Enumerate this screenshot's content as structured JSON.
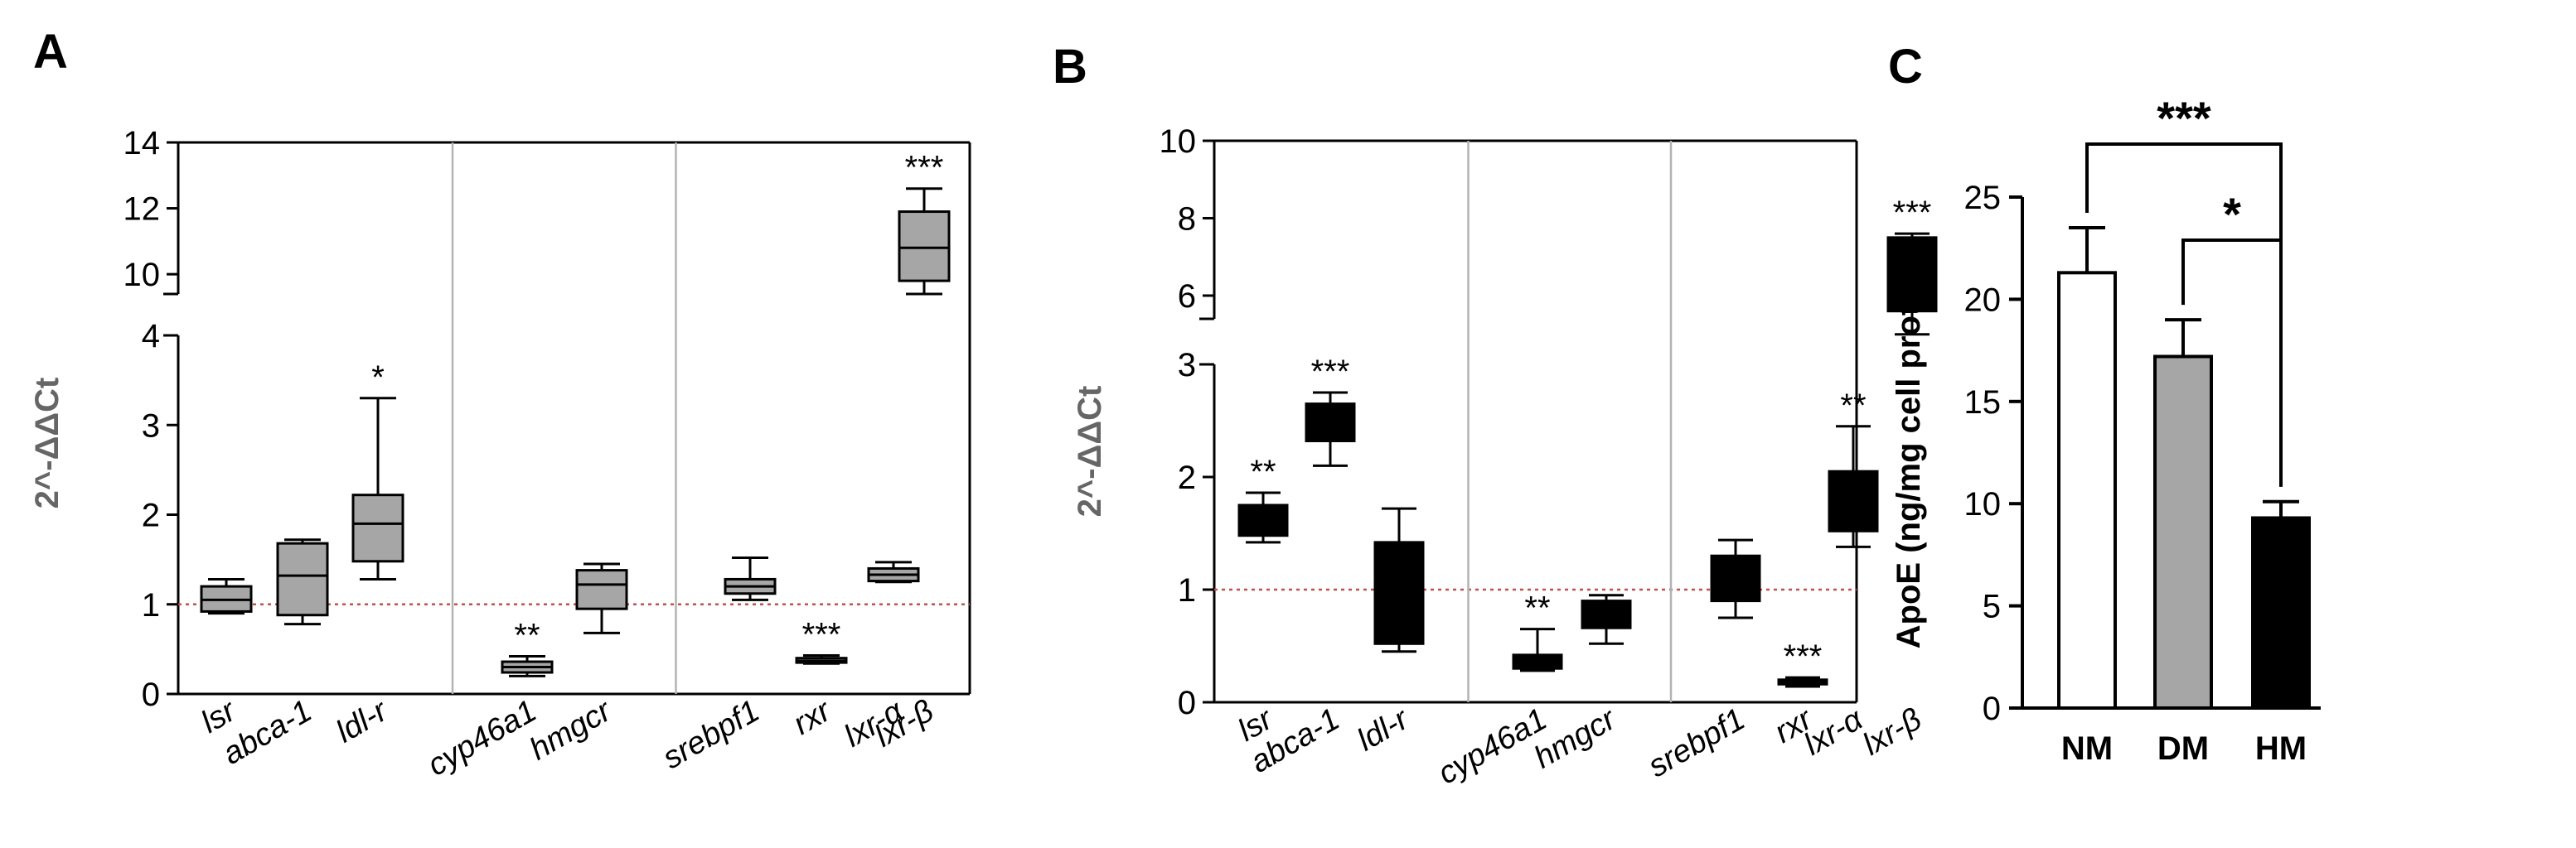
{
  "chart_data": [
    {
      "panel": "A",
      "type": "box",
      "ylabel": "2^-ΔΔCt",
      "reference_line": 1,
      "reference_color": "#c0504d",
      "box_color": "#a6a6a6",
      "lower_ticks": [
        0,
        1,
        2,
        3,
        4
      ],
      "upper_ticks": [
        10,
        12,
        14
      ],
      "categories": [
        "lsr",
        "abca-1",
        "ldl-r",
        "cyp46a1",
        "hmgcr",
        "srebpf1",
        "rxr",
        "lxr-α",
        "lxr-β"
      ],
      "groups": [
        3,
        2,
        4
      ],
      "boxes": [
        {
          "min": 0.9,
          "q1": 0.92,
          "median": 1.05,
          "q3": 1.2,
          "max": 1.28,
          "sig": ""
        },
        {
          "min": 0.78,
          "q1": 0.88,
          "median": 1.32,
          "q3": 1.68,
          "max": 1.72,
          "sig": ""
        },
        {
          "min": 1.28,
          "q1": 1.48,
          "median": 1.9,
          "q3": 2.22,
          "max": 3.3,
          "sig": "*"
        },
        {
          "min": 0.2,
          "q1": 0.24,
          "median": 0.3,
          "q3": 0.36,
          "max": 0.42,
          "sig": "**"
        },
        {
          "min": 0.68,
          "q1": 0.95,
          "median": 1.22,
          "q3": 1.38,
          "max": 1.45,
          "sig": ""
        },
        {
          "min": 1.05,
          "q1": 1.12,
          "median": 1.2,
          "q3": 1.28,
          "max": 1.52,
          "sig": ""
        },
        {
          "min": 0.34,
          "q1": 0.35,
          "median": 0.37,
          "q3": 0.4,
          "max": 0.43,
          "sig": "***"
        },
        {
          "min": 1.25,
          "q1": 1.26,
          "median": 1.33,
          "q3": 1.4,
          "max": 1.47,
          "sig": ""
        },
        {
          "min": 9.4,
          "q1": 9.8,
          "median": 10.8,
          "q3": 11.9,
          "max": 12.6,
          "sig": "***"
        }
      ]
    },
    {
      "panel": "B",
      "type": "box",
      "ylabel": "2^-ΔΔCt",
      "reference_line": 1,
      "reference_color": "#c0504d",
      "box_color": "#000000",
      "lower_ticks": [
        0,
        1,
        2,
        3
      ],
      "upper_ticks": [
        6,
        8,
        10
      ],
      "categories": [
        "lsr",
        "abca-1",
        "ldl-r",
        "cyp46a1",
        "hmgcr",
        "srebpf1",
        "rxr",
        "lxr-α",
        "lxr-β"
      ],
      "groups": [
        3,
        2,
        4
      ],
      "boxes": [
        {
          "min": 1.42,
          "q1": 1.48,
          "median": 1.6,
          "q3": 1.75,
          "max": 1.86,
          "sig": "**"
        },
        {
          "min": 2.1,
          "q1": 2.32,
          "median": 2.45,
          "q3": 2.65,
          "max": 2.75,
          "sig": "***"
        },
        {
          "min": 0.45,
          "q1": 0.52,
          "median": 1.0,
          "q3": 1.42,
          "max": 1.72,
          "sig": ""
        },
        {
          "min": 0.28,
          "q1": 0.3,
          "median": 0.36,
          "q3": 0.42,
          "max": 0.65,
          "sig": "**"
        },
        {
          "min": 0.52,
          "q1": 0.66,
          "median": 0.74,
          "q3": 0.9,
          "max": 0.95,
          "sig": ""
        },
        {
          "min": 0.75,
          "q1": 0.9,
          "median": 1.05,
          "q3": 1.3,
          "max": 1.44,
          "sig": ""
        },
        {
          "min": 0.14,
          "q1": 0.16,
          "median": 0.18,
          "q3": 0.2,
          "max": 0.22,
          "sig": "***"
        },
        {
          "min": 1.38,
          "q1": 1.52,
          "median": 1.7,
          "q3": 2.05,
          "max": 2.45,
          "sig": "**"
        },
        {
          "min": 5.0,
          "q1": 5.6,
          "median": 6.5,
          "q3": 7.5,
          "max": 7.6,
          "sig": "***"
        }
      ]
    },
    {
      "panel": "C",
      "type": "bar",
      "ylabel": "ApoE (ng/mg cell protein)",
      "ylim": [
        0,
        25
      ],
      "ticks": [
        0,
        5,
        10,
        15,
        20,
        25
      ],
      "categories": [
        "NM",
        "DM",
        "HM"
      ],
      "values": [
        21.3,
        17.2,
        9.3
      ],
      "errors": [
        2.2,
        1.8,
        0.8
      ],
      "colors": [
        "#ffffff",
        "#a6a6a6",
        "#000000"
      ],
      "brackets": [
        {
          "from": "NM",
          "to": "HM",
          "label": "***"
        },
        {
          "from": "DM",
          "to": "HM",
          "label": "*"
        }
      ]
    }
  ]
}
